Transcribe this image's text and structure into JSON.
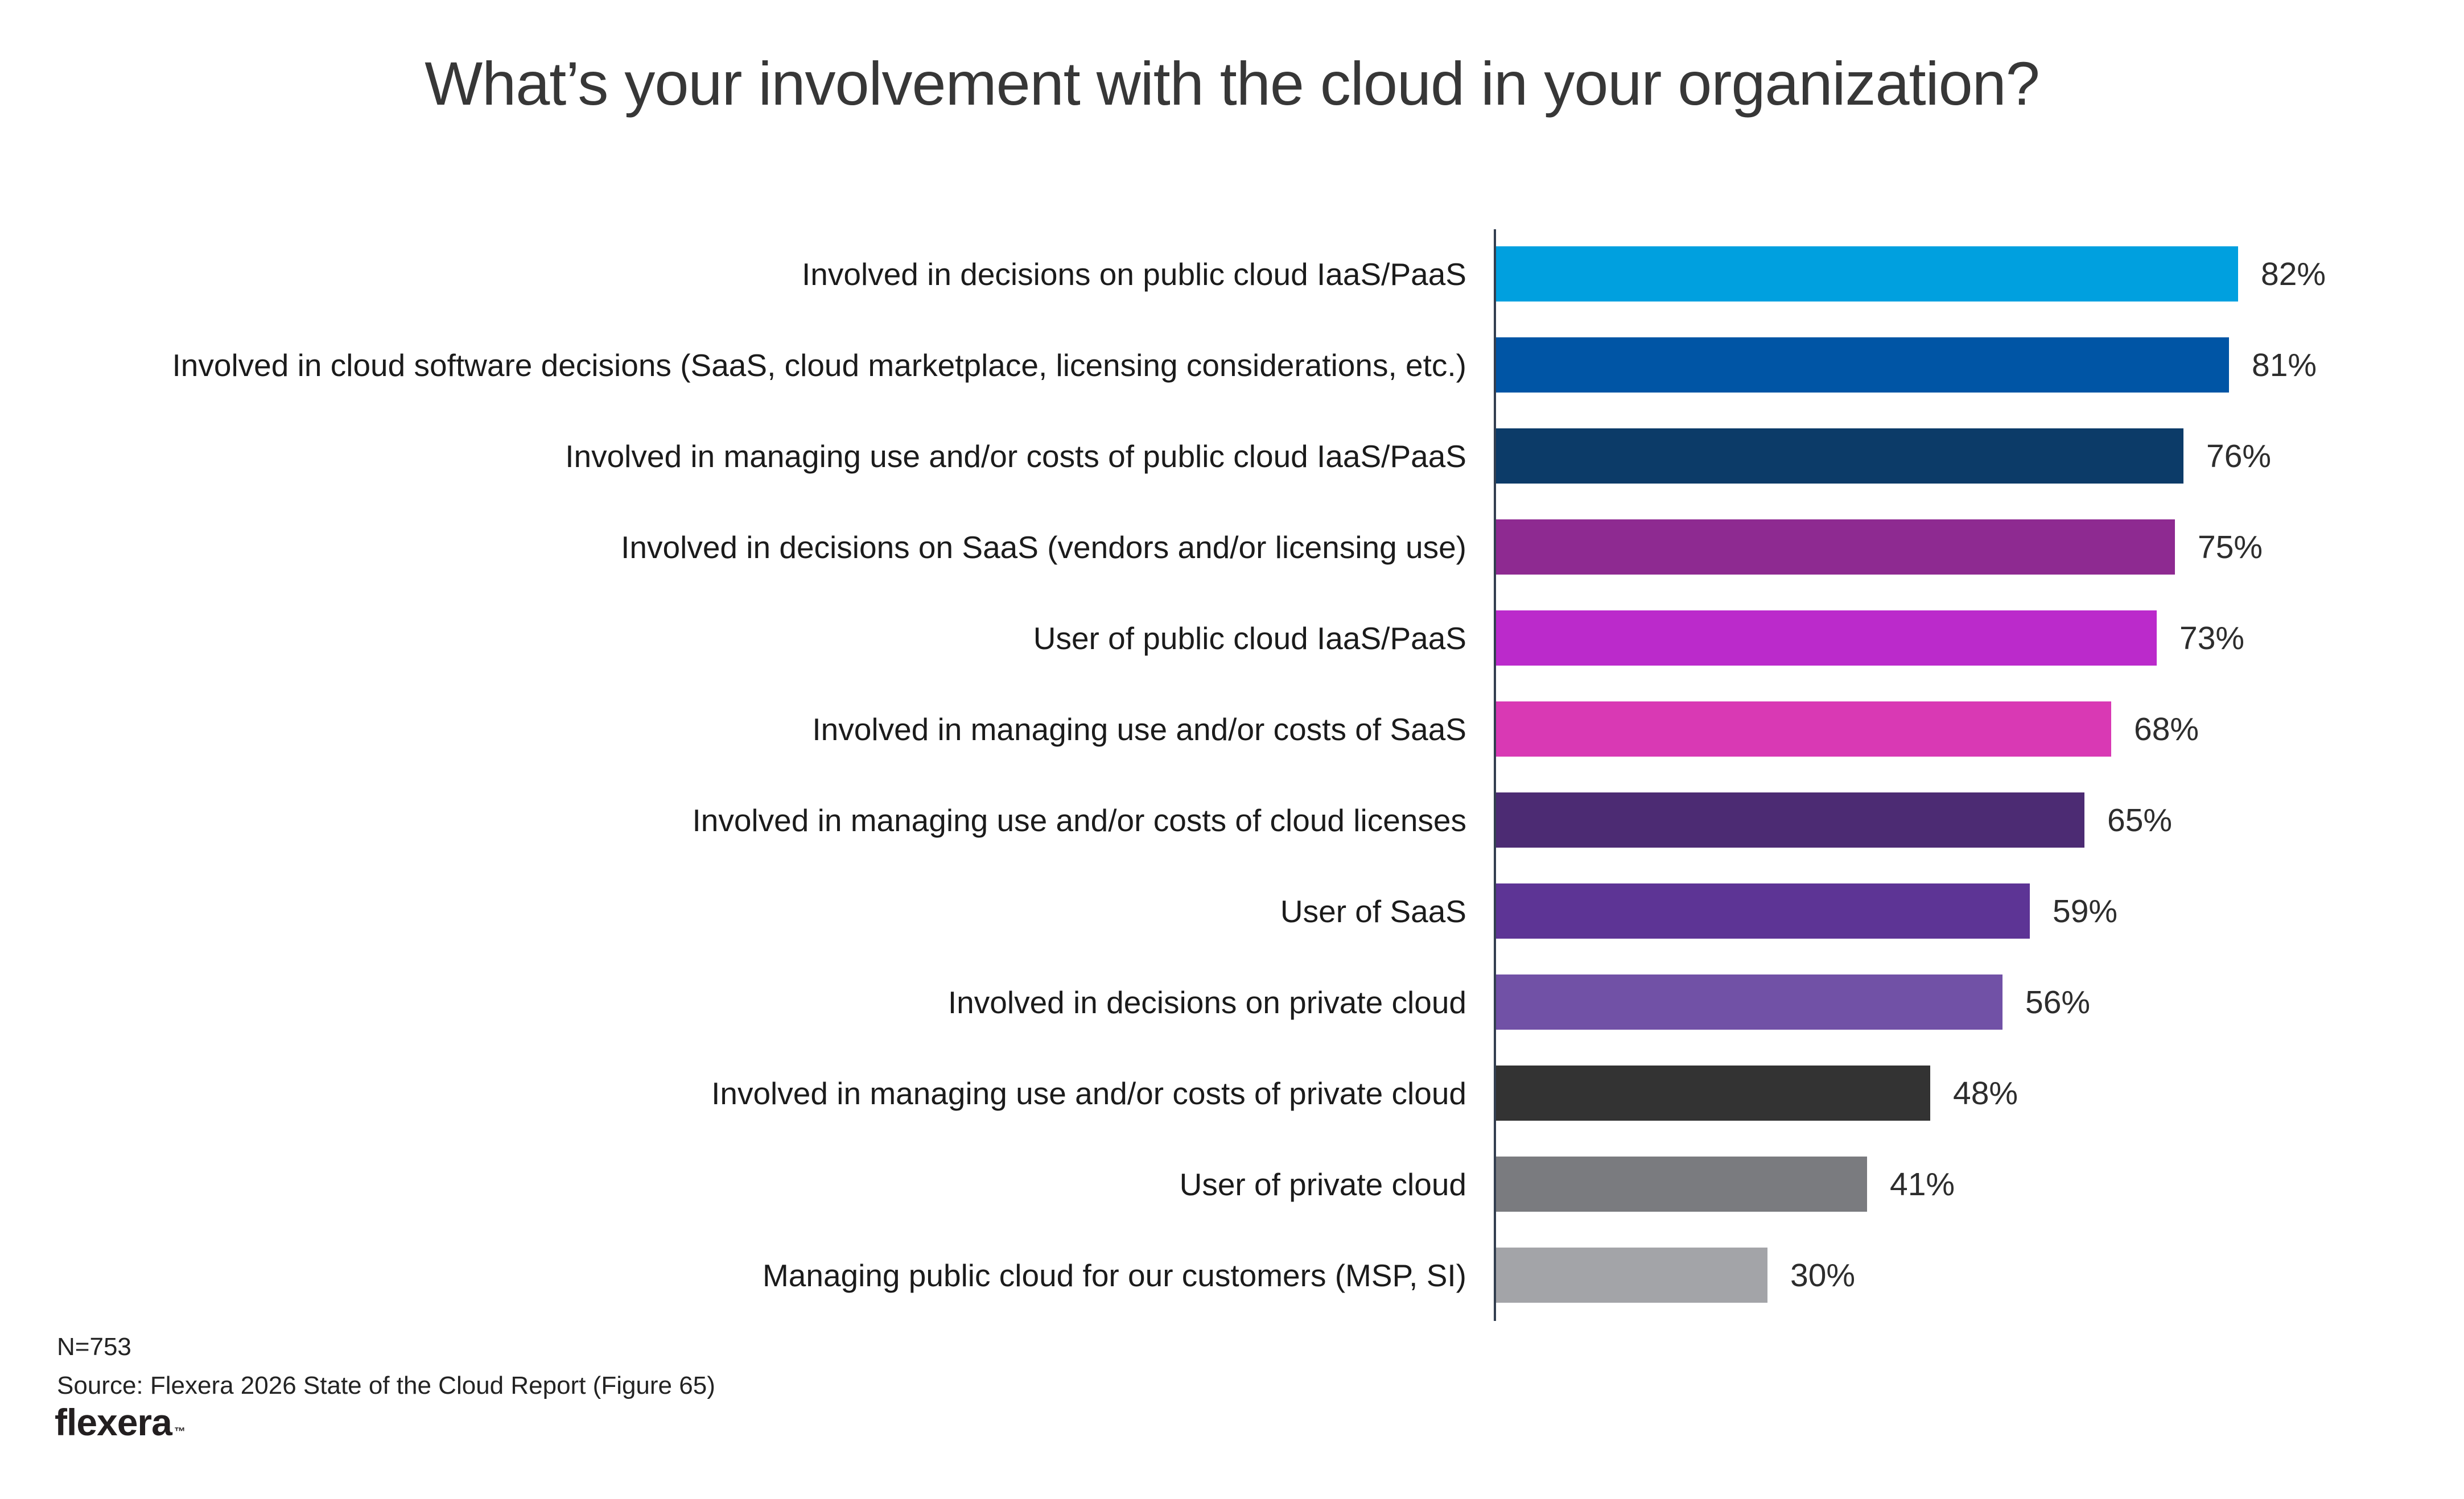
{
  "title": "What’s your involvement with the cloud in your organization?",
  "chart_data": {
    "type": "bar",
    "orientation": "horizontal",
    "title": "What’s your involvement with the cloud in your organization?",
    "unit": "%",
    "xlim": [
      0,
      100
    ],
    "grid": false,
    "value_labels_position": "end-of-bar",
    "categories": [
      "Involved in decisions on public cloud IaaS/PaaS",
      "Involved in cloud software decisions (SaaS, cloud marketplace, licensing considerations, etc.)",
      "Involved in managing use and/or costs of public cloud IaaS/PaaS",
      "Involved in decisions on SaaS (vendors and/or licensing use)",
      "User of public cloud IaaS/PaaS",
      "Involved in managing use and/or costs of SaaS",
      "Involved in managing use and/or costs of cloud licenses",
      "User of SaaS",
      "Involved in decisions on private cloud",
      "Involved in managing use and/or costs of private cloud",
      "User of private cloud",
      "Managing public cloud for our customers (MSP, SI)"
    ],
    "values": [
      82,
      81,
      76,
      75,
      73,
      68,
      65,
      59,
      56,
      48,
      41,
      30
    ],
    "bar_colors": [
      "#00A0DF",
      "#0055A5",
      "#0C3B68",
      "#8E2A91",
      "#BB2ACB",
      "#D939B4",
      "#4C2B73",
      "#5D3495",
      "#7151A6",
      "#333333",
      "#7A7B7F",
      "#A3A4A8"
    ]
  },
  "colors": {
    "axis_line": "#333F50",
    "title_text": "#373737",
    "label_text": "#1B1B1B",
    "value_text": "#2D2D2D"
  },
  "footer": {
    "sample_size": "N=753",
    "source": "Source: Flexera 2026 State of the Cloud Report (Figure 65)",
    "logo_text": "flexera",
    "logo_mark": "™"
  }
}
